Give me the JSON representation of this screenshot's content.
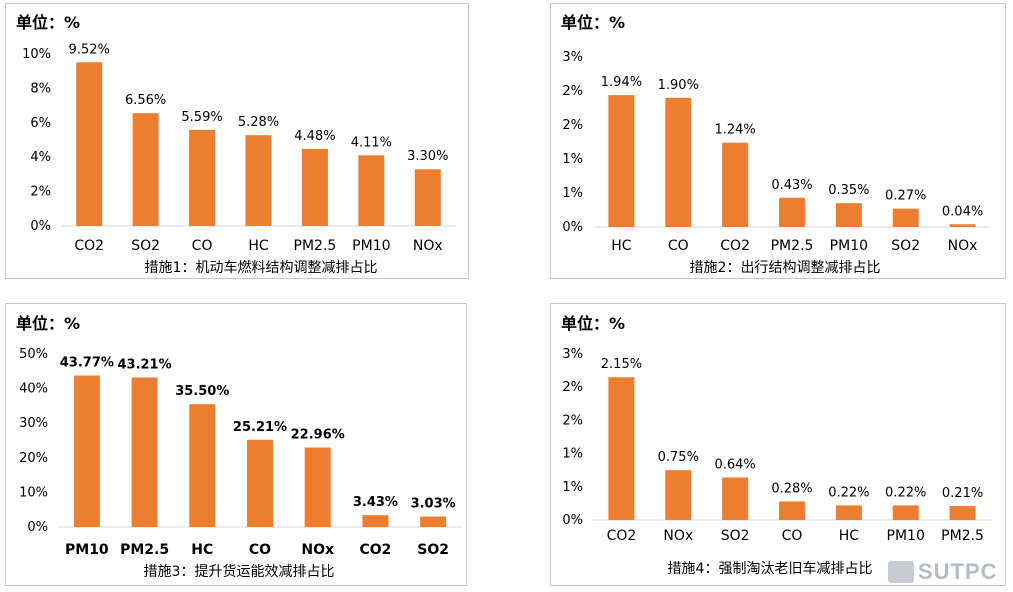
{
  "watermark": "SUTPC",
  "chart_data": [
    {
      "type": "bar",
      "unit_label": "单位：%",
      "title": "措施1：机动车燃料结构调整减排占比",
      "categories": [
        "CO2",
        "SO2",
        "CO",
        "HC",
        "PM2.5",
        "PM10",
        "NOx"
      ],
      "values": [
        9.52,
        6.56,
        5.59,
        5.28,
        4.48,
        4.11,
        3.3
      ],
      "value_labels": [
        "9.52%",
        "6.56%",
        "5.59%",
        "5.28%",
        "4.48%",
        "4.11%",
        "3.30%"
      ],
      "yticks": [
        "0%",
        "2%",
        "4%",
        "6%",
        "8%",
        "10%"
      ],
      "ylim": [
        0,
        10
      ],
      "bold_value_labels": false,
      "color": "#ED7D31"
    },
    {
      "type": "bar",
      "unit_label": "单位：%",
      "title": "措施2：出行结构调整减排占比",
      "categories": [
        "HC",
        "CO",
        "CO2",
        "PM2.5",
        "PM10",
        "SO2",
        "NOx"
      ],
      "values": [
        1.94,
        1.9,
        1.24,
        0.43,
        0.35,
        0.27,
        0.04
      ],
      "value_labels": [
        "1.94%",
        "1.90%",
        "1.24%",
        "0.43%",
        "0.35%",
        "0.27%",
        "0.04%"
      ],
      "yticks": [
        "0%",
        "1%",
        "1%",
        "2%",
        "2%",
        "3%"
      ],
      "ylim": [
        0,
        2.5
      ],
      "bold_value_labels": false,
      "color": "#ED7D31"
    },
    {
      "type": "bar",
      "unit_label": "单位：%",
      "title": "措施3：提升货运能效减排占比",
      "categories": [
        "PM10",
        "PM2.5",
        "HC",
        "CO",
        "NOx",
        "CO2",
        "SO2"
      ],
      "values": [
        43.77,
        43.21,
        35.5,
        25.21,
        22.96,
        3.43,
        3.03
      ],
      "value_labels": [
        "43.77%",
        "43.21%",
        "35.50%",
        "25.21%",
        "22.96%",
        "3.43%",
        "3.03%"
      ],
      "yticks": [
        "0%",
        "10%",
        "20%",
        "30%",
        "40%",
        "50%"
      ],
      "ylim": [
        0,
        50
      ],
      "bold_value_labels": true,
      "color": "#ED7D31"
    },
    {
      "type": "bar",
      "unit_label": "单位：%",
      "title": "措施4：强制淘汰老旧车减排占比",
      "categories": [
        "CO2",
        "NOx",
        "SO2",
        "CO",
        "HC",
        "PM10",
        "PM2.5"
      ],
      "values": [
        2.15,
        0.75,
        0.64,
        0.28,
        0.22,
        0.22,
        0.21
      ],
      "value_labels": [
        "2.15%",
        "0.75%",
        "0.64%",
        "0.28%",
        "0.22%",
        "0.22%",
        "0.21%"
      ],
      "yticks": [
        "0%",
        "1%",
        "1%",
        "2%",
        "2%",
        "3%"
      ],
      "ylim": [
        0,
        2.5
      ],
      "bold_value_labels": false,
      "color": "#ED7D31"
    }
  ]
}
